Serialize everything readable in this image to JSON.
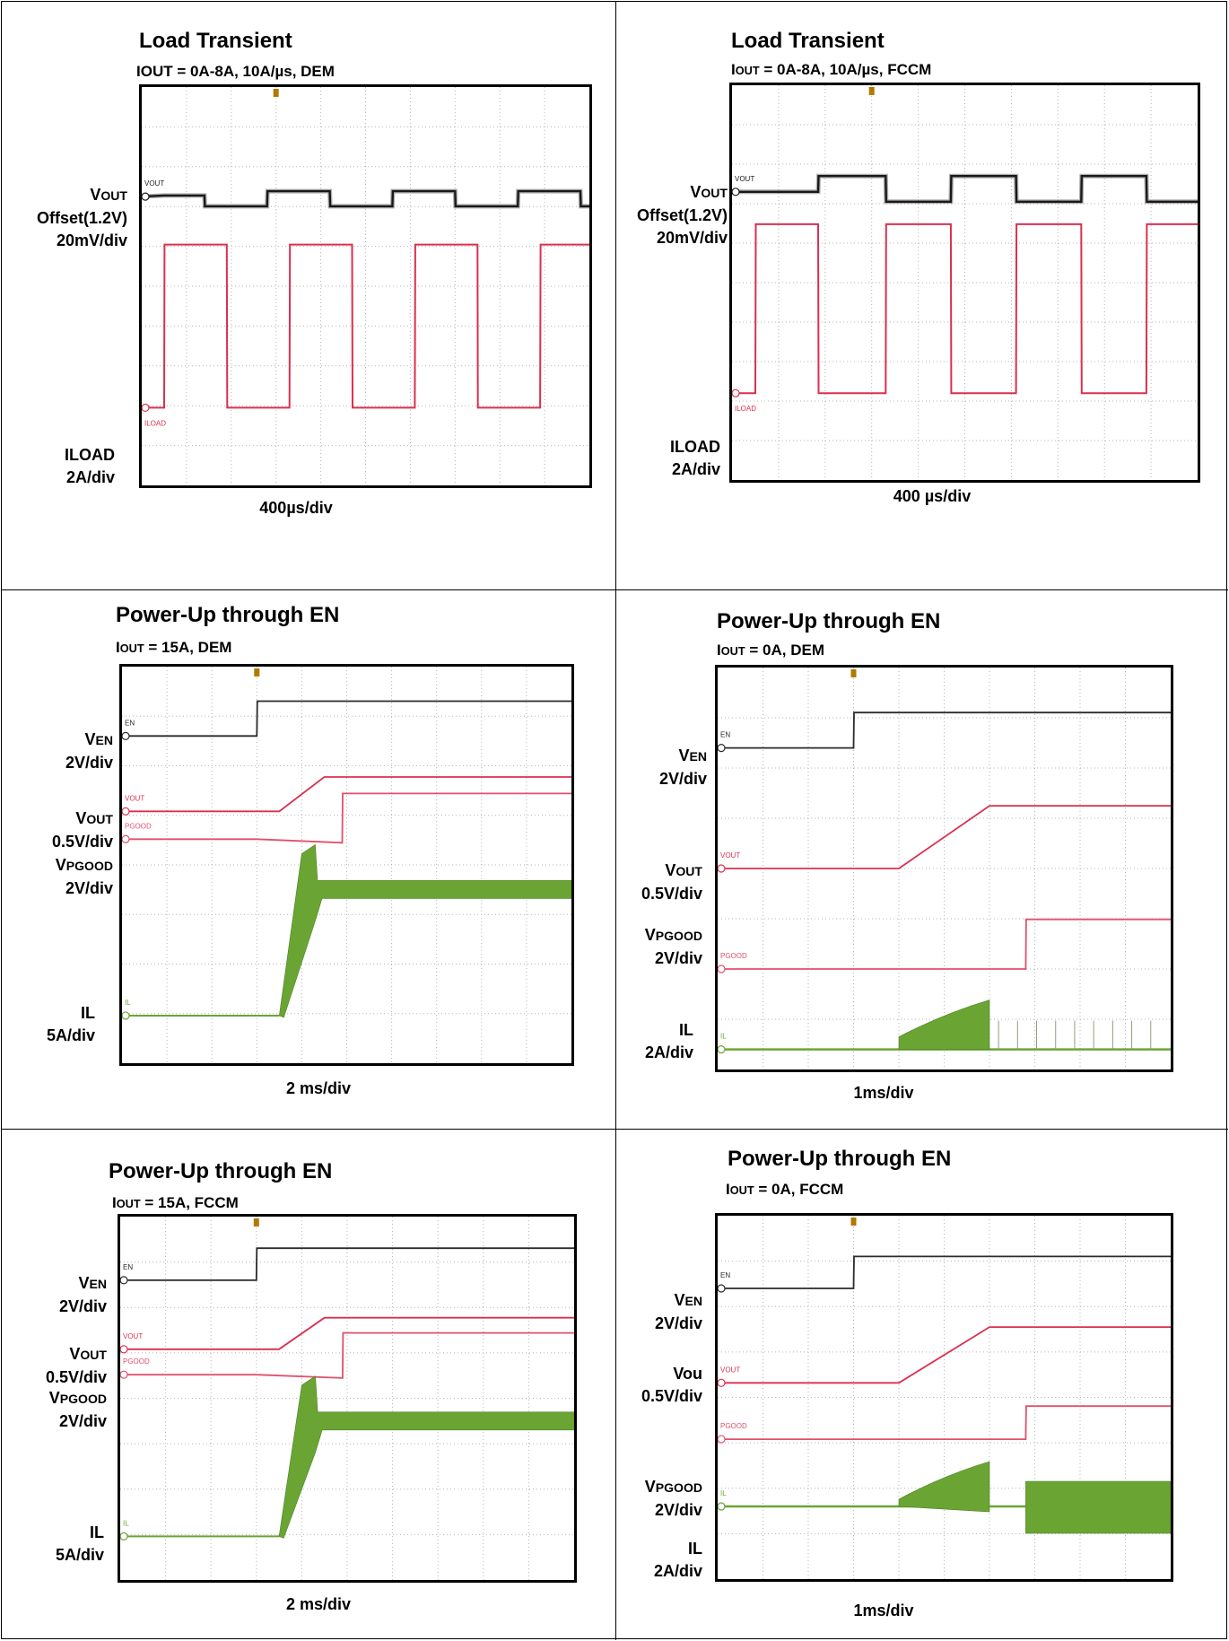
{
  "chart_data": [
    {
      "type": "line",
      "title": "Load Transient",
      "subtitle": "IOUT = 0A-8A, 10A/µs, DEM",
      "xlabel": "400µs/div",
      "channel_labels": [
        "VOUT\nOffset(1.2V)\n20mV/div",
        "ILOAD\n2A/div"
      ],
      "trace_tags": [
        "VOUT",
        "ILOAD"
      ],
      "grid": true,
      "series": [
        {
          "name": "VOUT",
          "color": "#1a1a1a",
          "x": [
            0,
            0.5,
            1.4,
            1.41,
            2.8,
            2.81,
            4.2,
            4.21,
            5.6,
            5.61,
            7.0,
            7.01,
            8.4,
            8.41,
            9.8,
            9.81,
            10.0
          ],
          "y": [
            0,
            0.1,
            0.1,
            -0.9,
            -0.9,
            0.5,
            0.5,
            -0.9,
            -0.9,
            0.5,
            0.5,
            -0.9,
            -0.9,
            0.5,
            0.5,
            -0.9,
            -0.9
          ]
        },
        {
          "name": "ILOAD",
          "color": "#d9304f",
          "x": [
            0,
            0.5,
            0.51,
            1.9,
            1.91,
            3.3,
            3.31,
            4.7,
            4.71,
            6.1,
            6.11,
            7.5,
            7.51,
            8.9,
            8.91,
            10.0
          ],
          "y": [
            0,
            0,
            8,
            8,
            0,
            0,
            8,
            8,
            0,
            0,
            8,
            8,
            0,
            0,
            8,
            8
          ]
        }
      ]
    },
    {
      "type": "line",
      "title": "Load Transient",
      "subtitle": "IOUT = 0A-8A, 10A/µs, FCCM",
      "xlabel": "400 µs/div",
      "channel_labels": [
        "VOUT\nOffset(1.2V)\n20mV/div",
        "ILOAD\n2A/div"
      ],
      "trace_tags": [
        "VOUT",
        "ILOAD"
      ],
      "grid": true,
      "series": [
        {
          "name": "VOUT",
          "color": "#1a1a1a",
          "x": [
            0,
            0.5,
            1.85,
            1.86,
            3.3,
            3.31,
            4.7,
            4.71,
            6.1,
            6.11,
            7.5,
            7.51,
            8.9,
            8.91,
            10.0
          ],
          "y": [
            0,
            0,
            0,
            0.8,
            0.8,
            -0.5,
            -0.5,
            0.8,
            0.8,
            -0.5,
            -0.5,
            0.8,
            0.8,
            -0.5,
            -0.5
          ]
        },
        {
          "name": "ILOAD",
          "color": "#d9304f",
          "x": [
            0,
            0.5,
            0.51,
            1.85,
            1.86,
            3.3,
            3.31,
            4.7,
            4.71,
            6.1,
            6.11,
            7.5,
            7.51,
            8.9,
            8.91,
            10.0
          ],
          "y": [
            0,
            0,
            8,
            8,
            0,
            0,
            8,
            8,
            0,
            0,
            8,
            8,
            0,
            0,
            8,
            8
          ]
        }
      ]
    },
    {
      "type": "line",
      "title": "Power-Up through EN",
      "subtitle": "IOUT = 15A, DEM",
      "xlabel": "2 ms/div",
      "channel_labels": [
        "VEN\n2V/div",
        "VOUT\n0.5V/div",
        "VPGOOD\n2V/div",
        "IL\n5A/div"
      ],
      "trace_tags": [
        "EN",
        "VOUT",
        "PGOOD",
        "IL"
      ],
      "grid": true,
      "series": [
        {
          "name": "EN",
          "color": "#2b2b2b",
          "x": [
            0,
            3.0,
            3.01,
            10.0
          ],
          "y": [
            0,
            0,
            1,
            1
          ]
        },
        {
          "name": "VOUT",
          "color": "#d9304f",
          "x": [
            0,
            3.5,
            4.5,
            10.0
          ],
          "y": [
            0,
            0,
            2.25,
            2.25
          ]
        },
        {
          "name": "PGOOD",
          "color": "#e0506b",
          "x": [
            0,
            3.0,
            4.9,
            4.91,
            10.0
          ],
          "y": [
            0,
            0,
            -0.1,
            1.25,
            1.25
          ]
        },
        {
          "name": "IL",
          "color": "#6aa534",
          "x": [
            0,
            3.5,
            4.6,
            10.0
          ],
          "y": [
            0,
            0,
            15,
            15
          ]
        }
      ]
    },
    {
      "type": "line",
      "title": "Power-Up through EN",
      "subtitle": "IOUT = 0A, DEM",
      "xlabel": "1ms/div",
      "channel_labels": [
        "VEN\n2V/div",
        "VOUT\n0.5V/div",
        "VPGOOD\n2V/div",
        "IL\n2A/div"
      ],
      "trace_tags": [
        "EN",
        "VOUT",
        "PGOOD",
        "IL"
      ],
      "grid": true,
      "series": [
        {
          "name": "EN",
          "color": "#2b2b2b",
          "x": [
            0,
            3.0,
            3.01,
            10.0
          ],
          "y": [
            0,
            0,
            1.6,
            1.6
          ]
        },
        {
          "name": "VOUT",
          "color": "#d9304f",
          "x": [
            0,
            4.0,
            6.0,
            10.0
          ],
          "y": [
            0,
            0,
            2.4,
            2.4
          ]
        },
        {
          "name": "PGOOD",
          "color": "#e0506b",
          "x": [
            0,
            3.0,
            6.8,
            6.81,
            10.0
          ],
          "y": [
            0,
            0,
            0,
            1.3,
            1.3
          ]
        },
        {
          "name": "IL",
          "color": "#6aa534",
          "x": [
            0,
            4.0,
            6.0,
            10.0
          ],
          "y": [
            0,
            0,
            3.0,
            0
          ]
        }
      ]
    },
    {
      "type": "line",
      "title": "Power-Up through EN",
      "subtitle": "IOUT = 15A, FCCM",
      "xlabel": "2 ms/div",
      "channel_labels": [
        "VEN\n2V/div",
        "VOUT\n0.5V/div",
        "VPGOOD\n2V/div",
        "IL\n5A/div"
      ],
      "trace_tags": [
        "EN",
        "VOUT",
        "PGOOD",
        "IL"
      ],
      "grid": true,
      "series": [
        {
          "name": "EN",
          "color": "#2b2b2b",
          "x": [
            0,
            3.0,
            3.01,
            10.0
          ],
          "y": [
            0,
            0,
            1,
            1
          ]
        },
        {
          "name": "VOUT",
          "color": "#d9304f",
          "x": [
            0,
            3.5,
            4.5,
            10.0
          ],
          "y": [
            0,
            0,
            2.25,
            2.25
          ]
        },
        {
          "name": "PGOOD",
          "color": "#e0506b",
          "x": [
            0,
            3.0,
            4.9,
            4.91,
            10.0
          ],
          "y": [
            0,
            0,
            -0.1,
            1.25,
            1.25
          ]
        },
        {
          "name": "IL",
          "color": "#6aa534",
          "x": [
            0,
            3.5,
            4.6,
            10.0
          ],
          "y": [
            0,
            0,
            15,
            15
          ]
        }
      ]
    },
    {
      "type": "line",
      "title": "Power-Up through EN",
      "subtitle": "IOUT = 0A, FCCM",
      "xlabel": "1ms/div",
      "channel_labels": [
        "VEN\n2V/div",
        "Vou\n0.5V/div",
        "VPGOOD\n2V/div",
        "IL\n2A/div"
      ],
      "trace_tags": [
        "EN",
        "VOUT",
        "PGOOD",
        "IL"
      ],
      "grid": true,
      "series": [
        {
          "name": "EN",
          "color": "#2b2b2b",
          "x": [
            0,
            3.0,
            3.01,
            10.0
          ],
          "y": [
            0,
            0,
            1.6,
            1.6
          ]
        },
        {
          "name": "VOUT",
          "color": "#d9304f",
          "x": [
            0,
            4.0,
            6.0,
            10.0
          ],
          "y": [
            0,
            0,
            2.4,
            2.4
          ]
        },
        {
          "name": "PGOOD",
          "color": "#e0506b",
          "x": [
            0,
            3.0,
            6.8,
            6.81,
            10.0
          ],
          "y": [
            0,
            0,
            0,
            1.3,
            1.3
          ]
        },
        {
          "name": "IL",
          "color": "#6aa534",
          "x": [
            0,
            4.0,
            6.0,
            6.8,
            10.0
          ],
          "y": [
            0,
            0,
            3.0,
            0,
            0
          ]
        }
      ]
    }
  ]
}
